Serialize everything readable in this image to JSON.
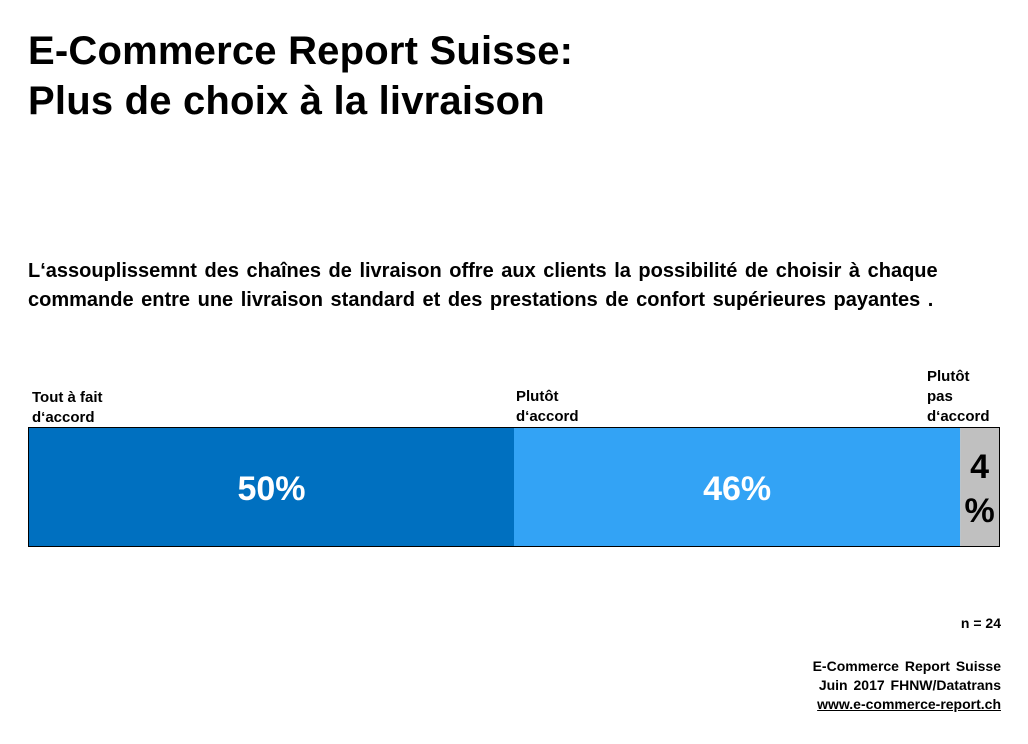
{
  "header": {
    "title_line1": "E-Commerce Report Suisse:",
    "title_line2": "Plus de choix à la livraison"
  },
  "statement": "L‘assouplissemnt des chaînes de livraison offre aux clients la possibilité de choisir à chaque commande entre une livraison standard et des prestations de confort supérieures payantes .",
  "chart_data": {
    "type": "bar",
    "orientation": "horizontal-stacked",
    "categories": [
      "Tout à fait d‘accord",
      "Plutôt d‘accord",
      "Plutôt pas d‘accord"
    ],
    "values": [
      50,
      46,
      4
    ],
    "data_labels": [
      "50%",
      "46%",
      "4 %"
    ],
    "colors": [
      "#0070C0",
      "#33A3F5",
      "#C0C0C0"
    ],
    "label_colors": [
      "#ffffff",
      "#ffffff",
      "#000000"
    ],
    "total": 100
  },
  "category_labels": {
    "cat1": "Tout à fait d‘accord",
    "cat2": "Plutôt d‘accord",
    "cat3": "Plutôt pas d‘accord"
  },
  "footer": {
    "sample": "n = 24",
    "source_line1": "E-Commerce Report Suisse",
    "source_line2": "Juin 2017 FHNW/Datatrans",
    "source_link": "www.e-commerce-report.ch"
  }
}
